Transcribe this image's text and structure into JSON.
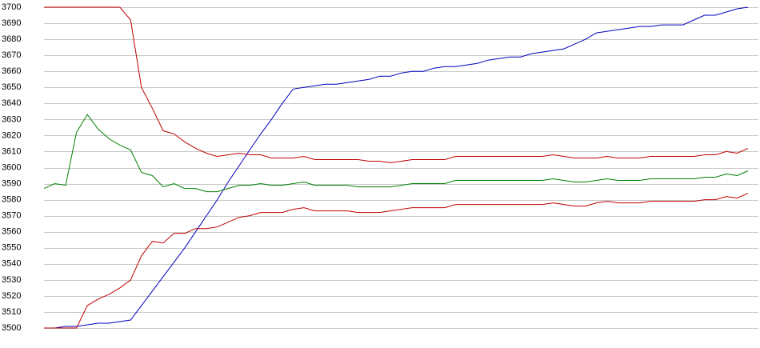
{
  "chart_data": {
    "type": "line",
    "ylim": [
      3500,
      3700
    ],
    "yticks": [
      3500,
      3510,
      3520,
      3530,
      3540,
      3550,
      3560,
      3570,
      3580,
      3590,
      3600,
      3610,
      3620,
      3630,
      3640,
      3650,
      3660,
      3670,
      3680,
      3690,
      3700
    ],
    "grid": true,
    "series": [
      {
        "color": "#0000c0",
        "values": [
          3500,
          3500,
          3501,
          3501,
          3502,
          3503,
          3503,
          3504,
          3505,
          3514,
          3523,
          3532,
          3541,
          3550,
          3560,
          3570,
          3580,
          3591,
          3601,
          3611,
          3621,
          3630,
          3640,
          3649,
          3650,
          3651,
          3652,
          3652,
          3653,
          3654,
          3655,
          3657,
          3657,
          3659,
          3660,
          3660,
          3662,
          3663,
          3663,
          3664,
          3665,
          3667,
          3668,
          3669,
          3669,
          3671,
          3672,
          3673,
          3674,
          3677,
          3680,
          3684,
          3685,
          3686,
          3687,
          3688,
          3688,
          3689,
          3689,
          3689,
          3692,
          3695,
          3695,
          3697,
          3699,
          3700
        ]
      },
      {
        "color": "#c00000",
        "values": [
          3700,
          3700,
          3700,
          3700,
          3700,
          3700,
          3700,
          3700,
          3692,
          3650,
          3637,
          3623,
          3621,
          3616,
          3612,
          3609,
          3607,
          3608,
          3609,
          3608,
          3608,
          3606,
          3606,
          3606,
          3607,
          3605,
          3605,
          3605,
          3605,
          3605,
          3604,
          3604,
          3603,
          3604,
          3605,
          3605,
          3605,
          3605,
          3607,
          3607,
          3607,
          3607,
          3607,
          3607,
          3607,
          3607,
          3607,
          3608,
          3607,
          3606,
          3606,
          3606,
          3607,
          3606,
          3606,
          3606,
          3607,
          3607,
          3607,
          3607,
          3607,
          3608,
          3608,
          3610,
          3609,
          3612
        ]
      },
      {
        "color": "#008000",
        "values": [
          3587,
          3590,
          3589,
          3622,
          3633,
          3624,
          3618,
          3614,
          3611,
          3597,
          3595,
          3588,
          3590,
          3587,
          3587,
          3585,
          3585,
          3587,
          3589,
          3589,
          3590,
          3589,
          3589,
          3590,
          3591,
          3589,
          3589,
          3589,
          3589,
          3588,
          3588,
          3588,
          3588,
          3589,
          3590,
          3590,
          3590,
          3590,
          3592,
          3592,
          3592,
          3592,
          3592,
          3592,
          3592,
          3592,
          3592,
          3593,
          3592,
          3591,
          3591,
          3592,
          3593,
          3592,
          3592,
          3592,
          3593,
          3593,
          3593,
          3593,
          3593,
          3594,
          3594,
          3596,
          3595,
          3598
        ]
      },
      {
        "color": "#c00000",
        "values": [
          3500,
          3500,
          3500,
          3500,
          3514,
          3518,
          3521,
          3525,
          3530,
          3545,
          3554,
          3553,
          3559,
          3559,
          3562,
          3562,
          3563,
          3566,
          3569,
          3570,
          3572,
          3572,
          3572,
          3574,
          3575,
          3573,
          3573,
          3573,
          3573,
          3572,
          3572,
          3572,
          3573,
          3574,
          3575,
          3575,
          3575,
          3575,
          3577,
          3577,
          3577,
          3577,
          3577,
          3577,
          3577,
          3577,
          3577,
          3578,
          3577,
          3576,
          3576,
          3578,
          3579,
          3578,
          3578,
          3578,
          3579,
          3579,
          3579,
          3579,
          3579,
          3580,
          3580,
          3582,
          3581,
          3584
        ]
      }
    ]
  }
}
